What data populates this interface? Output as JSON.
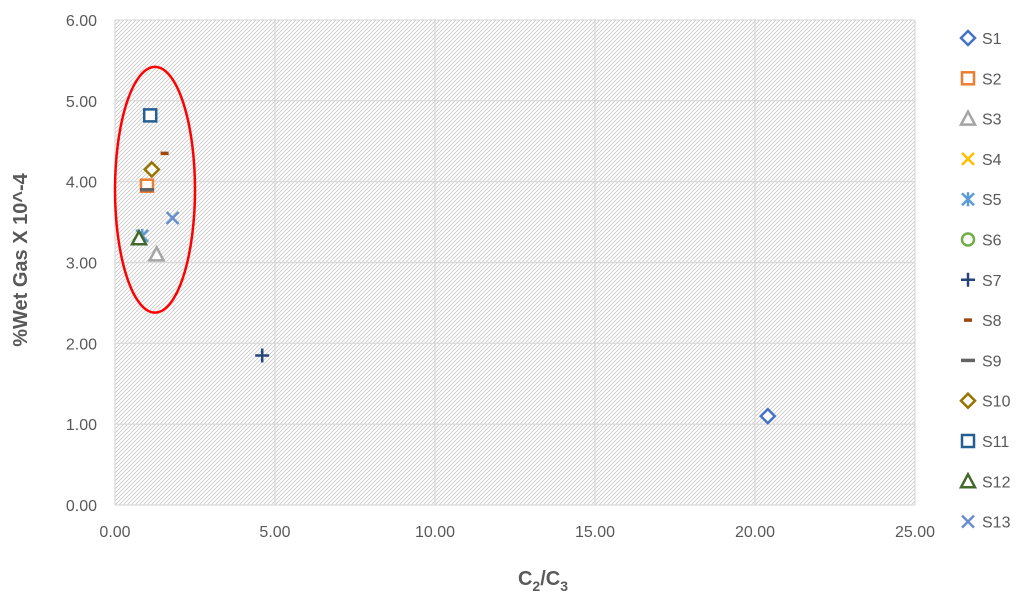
{
  "chart_data": {
    "type": "scatter",
    "title": "",
    "xlabel": {
      "main": "C",
      "sub1": "2",
      "slash": "/C",
      "sub2": "3"
    },
    "ylabel": "%Wet Gas X 10^-4",
    "xlim": [
      0,
      25
    ],
    "ylim": [
      0,
      6
    ],
    "grid": true,
    "legend_position": "right",
    "x_ticks": [
      "0.00",
      "5.00",
      "10.00",
      "15.00",
      "20.00",
      "25.00"
    ],
    "y_ticks": [
      "0.00",
      "1.00",
      "2.00",
      "3.00",
      "4.00",
      "5.00",
      "6.00"
    ],
    "series": [
      {
        "name": "S1",
        "marker": "diamond",
        "color": "#4472C4",
        "points": [
          [
            20.4,
            1.1
          ]
        ]
      },
      {
        "name": "S2",
        "marker": "square",
        "color": "#ED7D31",
        "points": [
          [
            1.0,
            3.95
          ]
        ]
      },
      {
        "name": "S3",
        "marker": "triangle",
        "color": "#A5A5A5",
        "points": [
          [
            1.3,
            3.1
          ]
        ]
      },
      {
        "name": "S4",
        "marker": "x",
        "color": "#FFC000",
        "points": []
      },
      {
        "name": "S5",
        "marker": "star",
        "color": "#5B9BD5",
        "points": [
          [
            0.85,
            3.33
          ]
        ]
      },
      {
        "name": "S6",
        "marker": "circle",
        "color": "#70AD47",
        "points": []
      },
      {
        "name": "S7",
        "marker": "plus",
        "color": "#264478",
        "points": [
          [
            4.6,
            1.85
          ]
        ]
      },
      {
        "name": "S8",
        "marker": "short-dash",
        "color": "#9E480E",
        "points": [
          [
            1.55,
            4.35
          ]
        ]
      },
      {
        "name": "S9",
        "marker": "dash",
        "color": "#636363",
        "points": [
          [
            1.0,
            3.9
          ]
        ]
      },
      {
        "name": "S10",
        "marker": "diamond",
        "color": "#997300",
        "points": [
          [
            1.15,
            4.15
          ]
        ]
      },
      {
        "name": "S11",
        "marker": "square",
        "color": "#255E91",
        "points": [
          [
            1.1,
            4.82
          ]
        ]
      },
      {
        "name": "S12",
        "marker": "triangle",
        "color": "#43682B",
        "points": [
          [
            0.75,
            3.3
          ]
        ]
      },
      {
        "name": "S13",
        "marker": "x",
        "color": "#698ED0",
        "points": [
          [
            1.8,
            3.55
          ]
        ]
      }
    ],
    "annotations": [
      {
        "type": "ellipse",
        "color": "#FF0000",
        "cx": 1.25,
        "cy": 3.9,
        "rx": 1.25,
        "ry": 1.52
      }
    ]
  }
}
